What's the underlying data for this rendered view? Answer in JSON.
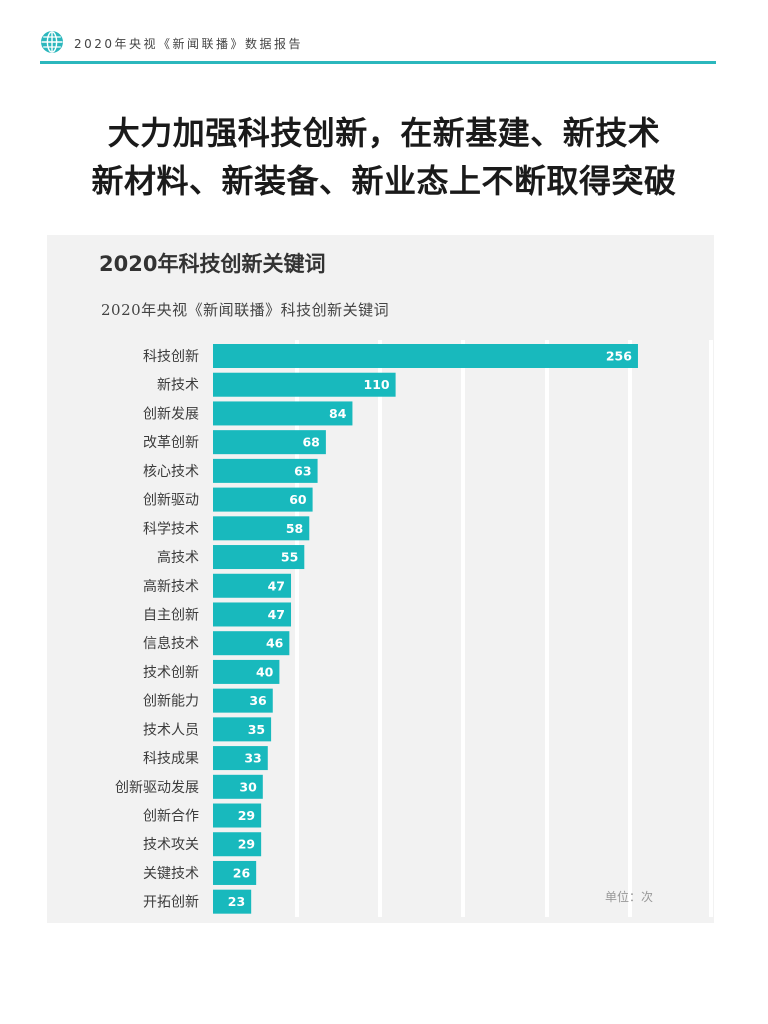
{
  "header": {
    "text": "2020年央视《新闻联播》数据报告",
    "icon": "globe-icon",
    "accent_color": "#2bb7bd"
  },
  "headline": {
    "line1": "大力加强科技创新，在新基建、新技术",
    "line2": "新材料、新装备、新业态上不断取得突破"
  },
  "chart_data": {
    "type": "bar",
    "orientation": "horizontal",
    "title": "2020年科技创新关键词",
    "subtitle": "2020年央视《新闻联播》科技创新关键词",
    "unit_label": "单位：次",
    "bar_color": "#18b9bd",
    "categories": [
      "科技创新",
      "新技术",
      "创新发展",
      "改革创新",
      "核心技术",
      "创新驱动",
      "科学技术",
      "高技术",
      "高新技术",
      "自主创新",
      "信息技术",
      "技术创新",
      "创新能力",
      "技术人员",
      "科技成果",
      "创新驱动发展",
      "创新合作",
      "技术攻关",
      "关键技术",
      "开拓创新"
    ],
    "values": [
      256,
      110,
      84,
      68,
      63,
      60,
      58,
      55,
      47,
      47,
      46,
      40,
      36,
      35,
      33,
      30,
      29,
      29,
      26,
      23
    ],
    "grid": true,
    "legend": "none"
  }
}
